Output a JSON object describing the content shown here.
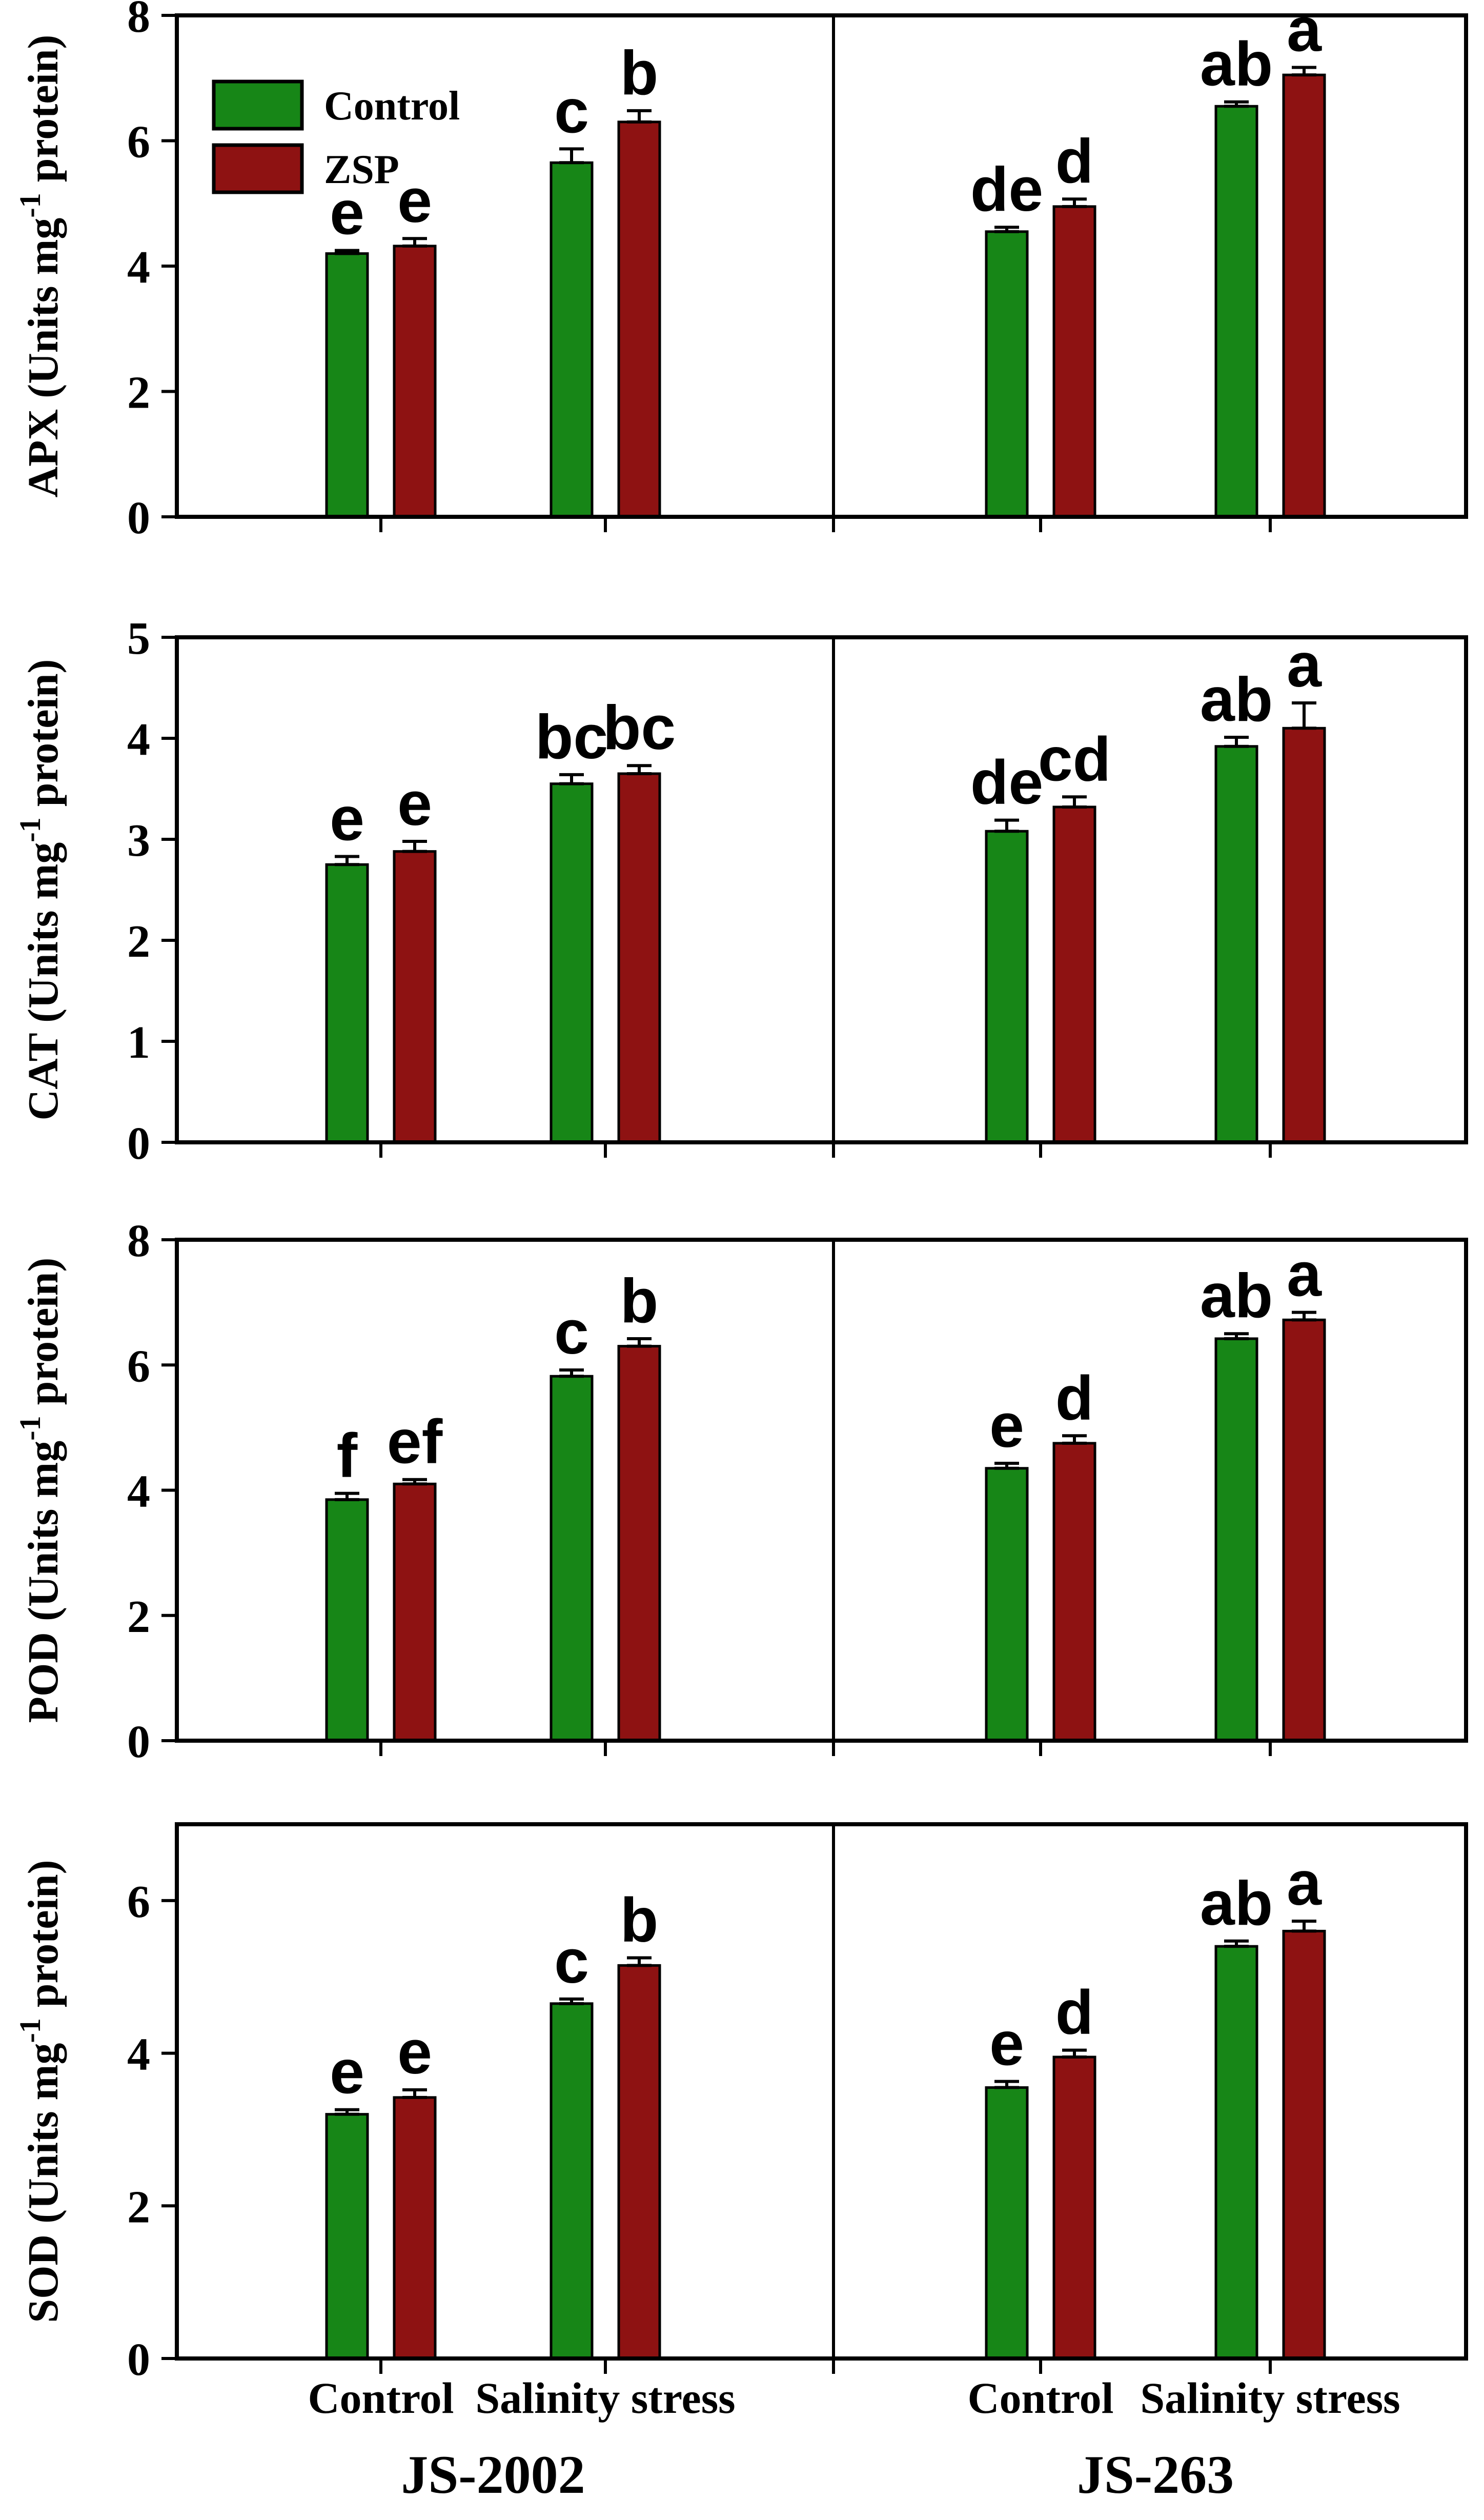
{
  "figure": {
    "description_title": "Antioxidant enzyme activities bar charts"
  },
  "colors": {
    "control_green": "#178617",
    "zsp_red": "#8E1212",
    "bar_border": "#000000",
    "axis": "#000000",
    "text": "#000000",
    "background": "#ffffff"
  },
  "legend": {
    "items": [
      {
        "label": "Control",
        "color": "#178617"
      },
      {
        "label": "ZSP",
        "color": "#8E1212"
      }
    ]
  },
  "x_axis": {
    "tick_labels": [
      "Control",
      "Salinity stress",
      "Control",
      "Salinity stress"
    ],
    "variety_labels": [
      "JS-2002",
      "JS-263"
    ]
  },
  "chart_data": [
    {
      "type": "bar",
      "name": "APX",
      "ylabel": {
        "prefix": "APX (Units mg",
        "sup": "-1",
        "suffix": " protein)"
      },
      "ylim": [
        0,
        8
      ],
      "yticks": [
        0,
        2,
        4,
        6,
        8
      ],
      "show_legend": true,
      "sub_panels": [
        {
          "variety": "JS-2002",
          "groups": [
            {
              "label": "Control",
              "bars": [
                {
                  "series": "Control",
                  "value": 4.2,
                  "error": 0.05,
                  "letter": "e"
                },
                {
                  "series": "ZSP",
                  "value": 4.32,
                  "error": 0.12,
                  "letter": "e"
                }
              ]
            },
            {
              "label": "Salinity stress",
              "bars": [
                {
                  "series": "Control",
                  "value": 5.65,
                  "error": 0.22,
                  "letter": "c"
                },
                {
                  "series": "ZSP",
                  "value": 6.3,
                  "error": 0.18,
                  "letter": "b"
                }
              ]
            }
          ]
        },
        {
          "variety": "JS-263",
          "groups": [
            {
              "label": "Control",
              "bars": [
                {
                  "series": "Control",
                  "value": 4.55,
                  "error": 0.07,
                  "letter": "de"
                },
                {
                  "series": "ZSP",
                  "value": 4.95,
                  "error": 0.12,
                  "letter": "d"
                }
              ]
            },
            {
              "label": "Salinity stress",
              "bars": [
                {
                  "series": "Control",
                  "value": 6.55,
                  "error": 0.07,
                  "letter": "ab"
                },
                {
                  "series": "ZSP",
                  "value": 7.05,
                  "error": 0.12,
                  "letter": "a"
                }
              ]
            }
          ]
        }
      ]
    },
    {
      "type": "bar",
      "name": "CAT",
      "ylabel": {
        "prefix": "CAT (Units mg",
        "sup": "-1",
        "suffix": " protein)"
      },
      "ylim": [
        0,
        5
      ],
      "yticks": [
        0,
        1,
        2,
        3,
        4,
        5
      ],
      "show_legend": false,
      "sub_panels": [
        {
          "variety": "JS-2002",
          "groups": [
            {
              "label": "Control",
              "bars": [
                {
                  "series": "Control",
                  "value": 2.75,
                  "error": 0.08,
                  "letter": "e"
                },
                {
                  "series": "ZSP",
                  "value": 2.88,
                  "error": 0.1,
                  "letter": "e"
                }
              ]
            },
            {
              "label": "Salinity stress",
              "bars": [
                {
                  "series": "Control",
                  "value": 3.55,
                  "error": 0.09,
                  "letter": "bc"
                },
                {
                  "series": "ZSP",
                  "value": 3.65,
                  "error": 0.08,
                  "letter": "bc"
                }
              ]
            }
          ]
        },
        {
          "variety": "JS-263",
          "groups": [
            {
              "label": "Control",
              "bars": [
                {
                  "series": "Control",
                  "value": 3.08,
                  "error": 0.11,
                  "letter": "de"
                },
                {
                  "series": "ZSP",
                  "value": 3.32,
                  "error": 0.1,
                  "letter": "cd"
                }
              ]
            },
            {
              "label": "Salinity stress",
              "bars": [
                {
                  "series": "Control",
                  "value": 3.92,
                  "error": 0.09,
                  "letter": "ab"
                },
                {
                  "series": "ZSP",
                  "value": 4.1,
                  "error": 0.25,
                  "letter": "a"
                }
              ]
            }
          ]
        }
      ]
    },
    {
      "type": "bar",
      "name": "POD",
      "ylabel": {
        "prefix": "POD  (Units mg",
        "sup": "-1",
        "suffix": " protein)"
      },
      "ylim": [
        0,
        8
      ],
      "yticks": [
        0,
        2,
        4,
        6,
        8
      ],
      "show_legend": false,
      "sub_panels": [
        {
          "variety": "JS-2002",
          "groups": [
            {
              "label": "Control",
              "bars": [
                {
                  "series": "Control",
                  "value": 3.85,
                  "error": 0.1,
                  "letter": "f"
                },
                {
                  "series": "ZSP",
                  "value": 4.1,
                  "error": 0.07,
                  "letter": "ef"
                }
              ]
            },
            {
              "label": "Salinity stress",
              "bars": [
                {
                  "series": "Control",
                  "value": 5.82,
                  "error": 0.1,
                  "letter": "c"
                },
                {
                  "series": "ZSP",
                  "value": 6.3,
                  "error": 0.12,
                  "letter": "b"
                }
              ]
            }
          ]
        },
        {
          "variety": "JS-263",
          "groups": [
            {
              "label": "Control",
              "bars": [
                {
                  "series": "Control",
                  "value": 4.35,
                  "error": 0.08,
                  "letter": "e"
                },
                {
                  "series": "ZSP",
                  "value": 4.75,
                  "error": 0.12,
                  "letter": "d"
                }
              ]
            },
            {
              "label": "Salinity stress",
              "bars": [
                {
                  "series": "Control",
                  "value": 6.42,
                  "error": 0.08,
                  "letter": "ab"
                },
                {
                  "series": "ZSP",
                  "value": 6.72,
                  "error": 0.12,
                  "letter": "a"
                }
              ]
            }
          ]
        }
      ]
    },
    {
      "type": "bar",
      "name": "SOD",
      "ylabel": {
        "prefix": "SOD (Units mg",
        "sup": "-1",
        "suffix": " protein)"
      },
      "ylim": [
        0,
        7
      ],
      "yticks": [
        0,
        2,
        4,
        6
      ],
      "show_legend": false,
      "sub_panels": [
        {
          "variety": "JS-2002",
          "groups": [
            {
              "label": "Control",
              "bars": [
                {
                  "series": "Control",
                  "value": 3.2,
                  "error": 0.06,
                  "letter": "e"
                },
                {
                  "series": "ZSP",
                  "value": 3.42,
                  "error": 0.1,
                  "letter": "e"
                }
              ]
            },
            {
              "label": "Salinity stress",
              "bars": [
                {
                  "series": "Control",
                  "value": 4.65,
                  "error": 0.06,
                  "letter": "c"
                },
                {
                  "series": "ZSP",
                  "value": 5.15,
                  "error": 0.1,
                  "letter": "b"
                }
              ]
            }
          ]
        },
        {
          "variety": "JS-263",
          "groups": [
            {
              "label": "Control",
              "bars": [
                {
                  "series": "Control",
                  "value": 3.55,
                  "error": 0.08,
                  "letter": "e"
                },
                {
                  "series": "ZSP",
                  "value": 3.95,
                  "error": 0.09,
                  "letter": "d"
                }
              ]
            },
            {
              "label": "Salinity stress",
              "bars": [
                {
                  "series": "Control",
                  "value": 5.4,
                  "error": 0.07,
                  "letter": "ab"
                },
                {
                  "series": "ZSP",
                  "value": 5.6,
                  "error": 0.13,
                  "letter": "a"
                }
              ]
            }
          ]
        }
      ]
    }
  ]
}
